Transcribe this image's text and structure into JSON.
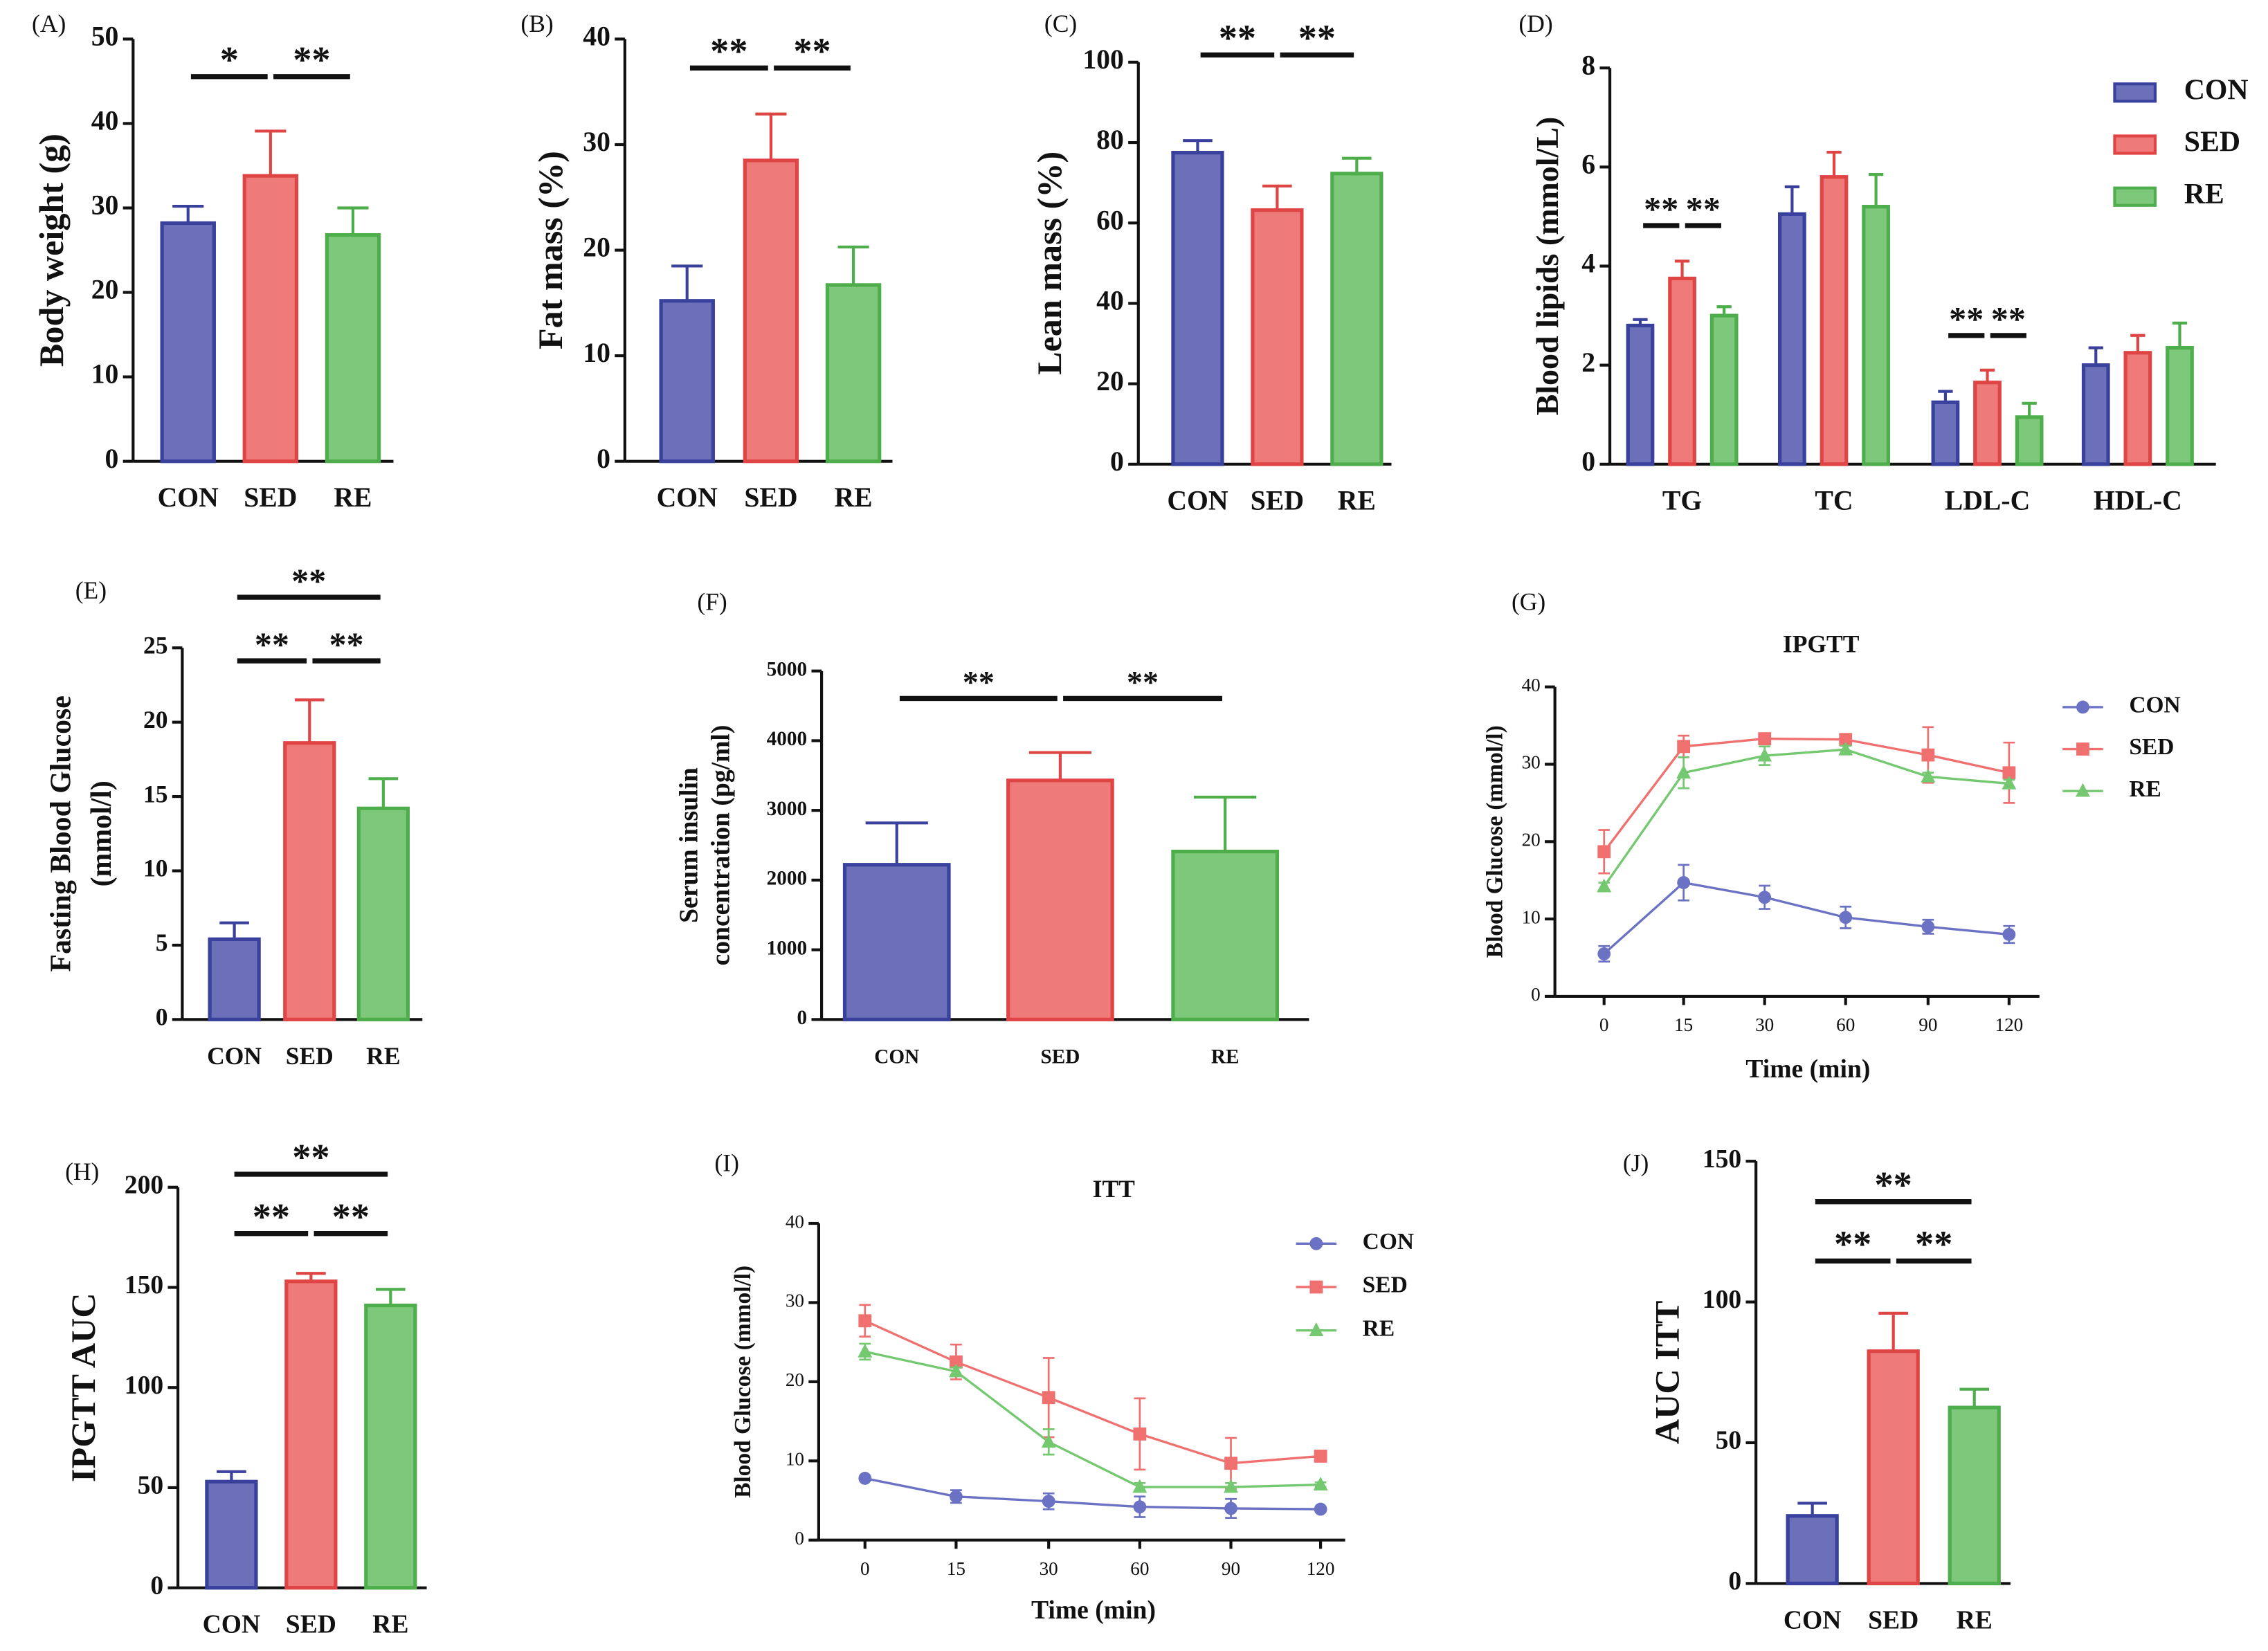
{
  "chart_data": [
    {
      "type": "bar",
      "panel": "(A)",
      "ylabel": [
        "Body weight (g)"
      ],
      "categories": [
        "CON",
        "SED",
        "RE"
      ],
      "values": [
        28.2,
        33.8,
        26.8
      ],
      "errors": [
        2.0,
        5.3,
        3.2
      ],
      "colors": [
        "#6b70b9",
        "#ee7a7a",
        "#7dc87b"
      ],
      "ylim": [
        0,
        50
      ],
      "yticks": [
        0,
        10,
        20,
        30,
        40,
        50
      ],
      "annotations": [
        {
          "text": "*",
          "between": [
            "CON",
            "SED"
          ]
        },
        {
          "text": "**",
          "between": [
            "SED",
            "RE"
          ]
        }
      ]
    },
    {
      "type": "bar",
      "panel": "(B)",
      "ylabel": [
        "Fat mass (%)"
      ],
      "categories": [
        "CON",
        "SED",
        "RE"
      ],
      "values": [
        15.2,
        28.5,
        16.7
      ],
      "errors": [
        3.3,
        4.4,
        3.6
      ],
      "colors": [
        "#6b70b9",
        "#ee7a7a",
        "#7dc87b"
      ],
      "ylim": [
        0,
        40
      ],
      "yticks": [
        0,
        10,
        20,
        30,
        40
      ],
      "annotations": [
        {
          "text": "**",
          "between": [
            "CON",
            "SED"
          ]
        },
        {
          "text": "**",
          "between": [
            "SED",
            "RE"
          ]
        }
      ]
    },
    {
      "type": "bar",
      "panel": "(C)",
      "ylabel": [
        "Lean mass (%)"
      ],
      "categories": [
        "CON",
        "SED",
        "RE"
      ],
      "values": [
        77.5,
        63.2,
        72.3
      ],
      "errors": [
        3.0,
        6.0,
        3.8
      ],
      "colors": [
        "#6b70b9",
        "#ee7a7a",
        "#7dc87b"
      ],
      "ylim": [
        0,
        100
      ],
      "yticks": [
        0,
        20,
        40,
        60,
        80,
        100
      ],
      "annotations": [
        {
          "text": "**",
          "between": [
            "CON",
            "SED"
          ]
        },
        {
          "text": "**",
          "between": [
            "SED",
            "RE"
          ]
        }
      ]
    },
    {
      "type": "grouped-bar",
      "panel": "(D)",
      "ylabel": [
        "Blood lipids (mmol/L)"
      ],
      "categories": [
        "TG",
        "TC",
        "LDL-C",
        "HDL-C"
      ],
      "series": [
        {
          "name": "CON",
          "color": "#6b70b9",
          "values": [
            2.8,
            5.05,
            1.25,
            2.0
          ],
          "errors": [
            0.12,
            0.55,
            0.22,
            0.35
          ]
        },
        {
          "name": "SED",
          "color": "#ee7a7a",
          "values": [
            3.75,
            5.8,
            1.65,
            2.25
          ],
          "errors": [
            0.35,
            0.5,
            0.25,
            0.35
          ]
        },
        {
          "name": "RE",
          "color": "#7dc87b",
          "values": [
            3.0,
            5.2,
            0.95,
            2.35
          ],
          "errors": [
            0.18,
            0.65,
            0.28,
            0.5
          ]
        }
      ],
      "ylim": [
        0,
        8
      ],
      "yticks": [
        0,
        2,
        4,
        6,
        8
      ],
      "annotations": [
        {
          "text": "**",
          "category": "TG",
          "between": [
            "CON",
            "SED"
          ]
        },
        {
          "text": "**",
          "category": "TG",
          "between": [
            "SED",
            "RE"
          ]
        },
        {
          "text": "**",
          "category": "LDL-C",
          "between": [
            "CON",
            "SED"
          ]
        },
        {
          "text": "**",
          "category": "LDL-C",
          "between": [
            "SED",
            "RE"
          ]
        }
      ]
    },
    {
      "type": "bar",
      "panel": "(E)",
      "ylabel": [
        "Fasting Blood Glucose",
        "(mmol/l)"
      ],
      "categories": [
        "CON",
        "SED",
        "RE"
      ],
      "values": [
        5.4,
        18.6,
        14.2
      ],
      "errors": [
        1.1,
        2.9,
        2.0
      ],
      "colors": [
        "#6b70b9",
        "#ee7a7a",
        "#7dc87b"
      ],
      "ylim": [
        0,
        25
      ],
      "yticks": [
        0,
        5,
        10,
        15,
        20,
        25
      ],
      "annotations": [
        {
          "text": "**",
          "between": [
            "CON",
            "SED"
          ]
        },
        {
          "text": "**",
          "between": [
            "SED",
            "RE"
          ]
        },
        {
          "text": "**",
          "between": [
            "CON",
            "RE"
          ]
        }
      ]
    },
    {
      "type": "bar",
      "panel": "(F)",
      "ylabel": [
        "Serum insulin",
        "concentration (pg/ml)"
      ],
      "categories": [
        "CON",
        "SED",
        "RE"
      ],
      "values": [
        2220,
        3430,
        2410
      ],
      "errors": [
        600,
        400,
        780
      ],
      "colors": [
        "#6b70b9",
        "#ee7a7a",
        "#7dc87b"
      ],
      "ylim": [
        0,
        5000
      ],
      "yticks": [
        0,
        1000,
        2000,
        3000,
        4000,
        5000
      ],
      "annotations": [
        {
          "text": "**",
          "between": [
            "CON",
            "SED"
          ]
        },
        {
          "text": "**",
          "between": [
            "SED",
            "RE"
          ]
        }
      ]
    },
    {
      "type": "line",
      "panel": "(G)",
      "title": "IPGTT",
      "ylabel": [
        "Blood Glucose (mmol/l)"
      ],
      "xlabel": "Time (min)",
      "categories": [
        "0",
        "15",
        "30",
        "60",
        "90",
        "120"
      ],
      "series": [
        {
          "name": "CON",
          "color": "#6b72c4",
          "marker": "circle",
          "values": [
            5.5,
            14.7,
            12.8,
            10.2,
            9.0,
            8.0
          ],
          "errors": [
            1.0,
            2.3,
            1.5,
            1.4,
            0.9,
            1.1
          ]
        },
        {
          "name": "SED",
          "color": "#f07070",
          "marker": "square",
          "values": [
            18.7,
            32.3,
            33.3,
            33.2,
            31.2,
            28.9
          ],
          "errors": [
            2.8,
            1.4,
            0.5,
            0.4,
            3.6,
            3.9
          ]
        },
        {
          "name": "RE",
          "color": "#74c870",
          "marker": "triangle",
          "values": [
            14.2,
            28.9,
            31.1,
            31.9,
            28.4,
            27.5
          ],
          "errors": [
            0.5,
            2.0,
            1.2,
            0.5,
            0.5,
            0.5
          ]
        }
      ],
      "ylim": [
        0,
        40
      ],
      "yticks": [
        0,
        10,
        20,
        30,
        40
      ]
    },
    {
      "type": "bar",
      "panel": "(H)",
      "ylabel": [
        "IPGTT AUC"
      ],
      "categories": [
        "CON",
        "SED",
        "RE"
      ],
      "values": [
        53,
        153,
        141
      ],
      "errors": [
        5,
        4,
        8
      ],
      "colors": [
        "#6b70b9",
        "#ee7a7a",
        "#7dc87b"
      ],
      "ylim": [
        0,
        200
      ],
      "yticks": [
        0,
        50,
        100,
        150,
        200
      ],
      "annotations": [
        {
          "text": "**",
          "between": [
            "CON",
            "SED"
          ]
        },
        {
          "text": "**",
          "between": [
            "SED",
            "RE"
          ]
        },
        {
          "text": "**",
          "between": [
            "CON",
            "RE"
          ]
        }
      ]
    },
    {
      "type": "line",
      "panel": "(I)",
      "title": "ITT",
      "ylabel": [
        "Blood Glucose (mmol/l)"
      ],
      "xlabel": "Time (min)",
      "categories": [
        "0",
        "15",
        "30",
        "60",
        "90",
        "120"
      ],
      "series": [
        {
          "name": "CON",
          "color": "#6b72c4",
          "marker": "circle",
          "values": [
            7.8,
            5.5,
            4.9,
            4.2,
            4.0,
            3.9
          ],
          "errors": [
            0.3,
            0.8,
            1.0,
            1.3,
            1.2,
            0.3
          ]
        },
        {
          "name": "SED",
          "color": "#f07070",
          "marker": "square",
          "values": [
            27.7,
            22.5,
            18.0,
            13.4,
            9.7,
            10.6
          ],
          "errors": [
            2.0,
            2.2,
            5.0,
            4.5,
            3.2,
            0.5
          ]
        },
        {
          "name": "RE",
          "color": "#74c870",
          "marker": "triangle",
          "values": [
            23.8,
            21.3,
            12.4,
            6.7,
            6.7,
            7.0
          ],
          "errors": [
            1.0,
            0.5,
            1.6,
            0.5,
            0.5,
            0.3
          ]
        }
      ],
      "ylim": [
        0,
        40
      ],
      "yticks": [
        0,
        10,
        20,
        30,
        40
      ]
    },
    {
      "type": "bar",
      "panel": "(J)",
      "ylabel": [
        "AUC ITT"
      ],
      "categories": [
        "CON",
        "SED",
        "RE"
      ],
      "values": [
        24,
        82.5,
        62.5
      ],
      "errors": [
        4.5,
        13.5,
        6.5
      ],
      "colors": [
        "#6b70b9",
        "#ee7a7a",
        "#7dc87b"
      ],
      "ylim": [
        0,
        150
      ],
      "yticks": [
        0,
        50,
        100,
        150
      ],
      "annotations": [
        {
          "text": "**",
          "between": [
            "CON",
            "SED"
          ]
        },
        {
          "text": "**",
          "between": [
            "SED",
            "RE"
          ]
        },
        {
          "text": "**",
          "between": [
            "CON",
            "RE"
          ]
        }
      ]
    }
  ]
}
